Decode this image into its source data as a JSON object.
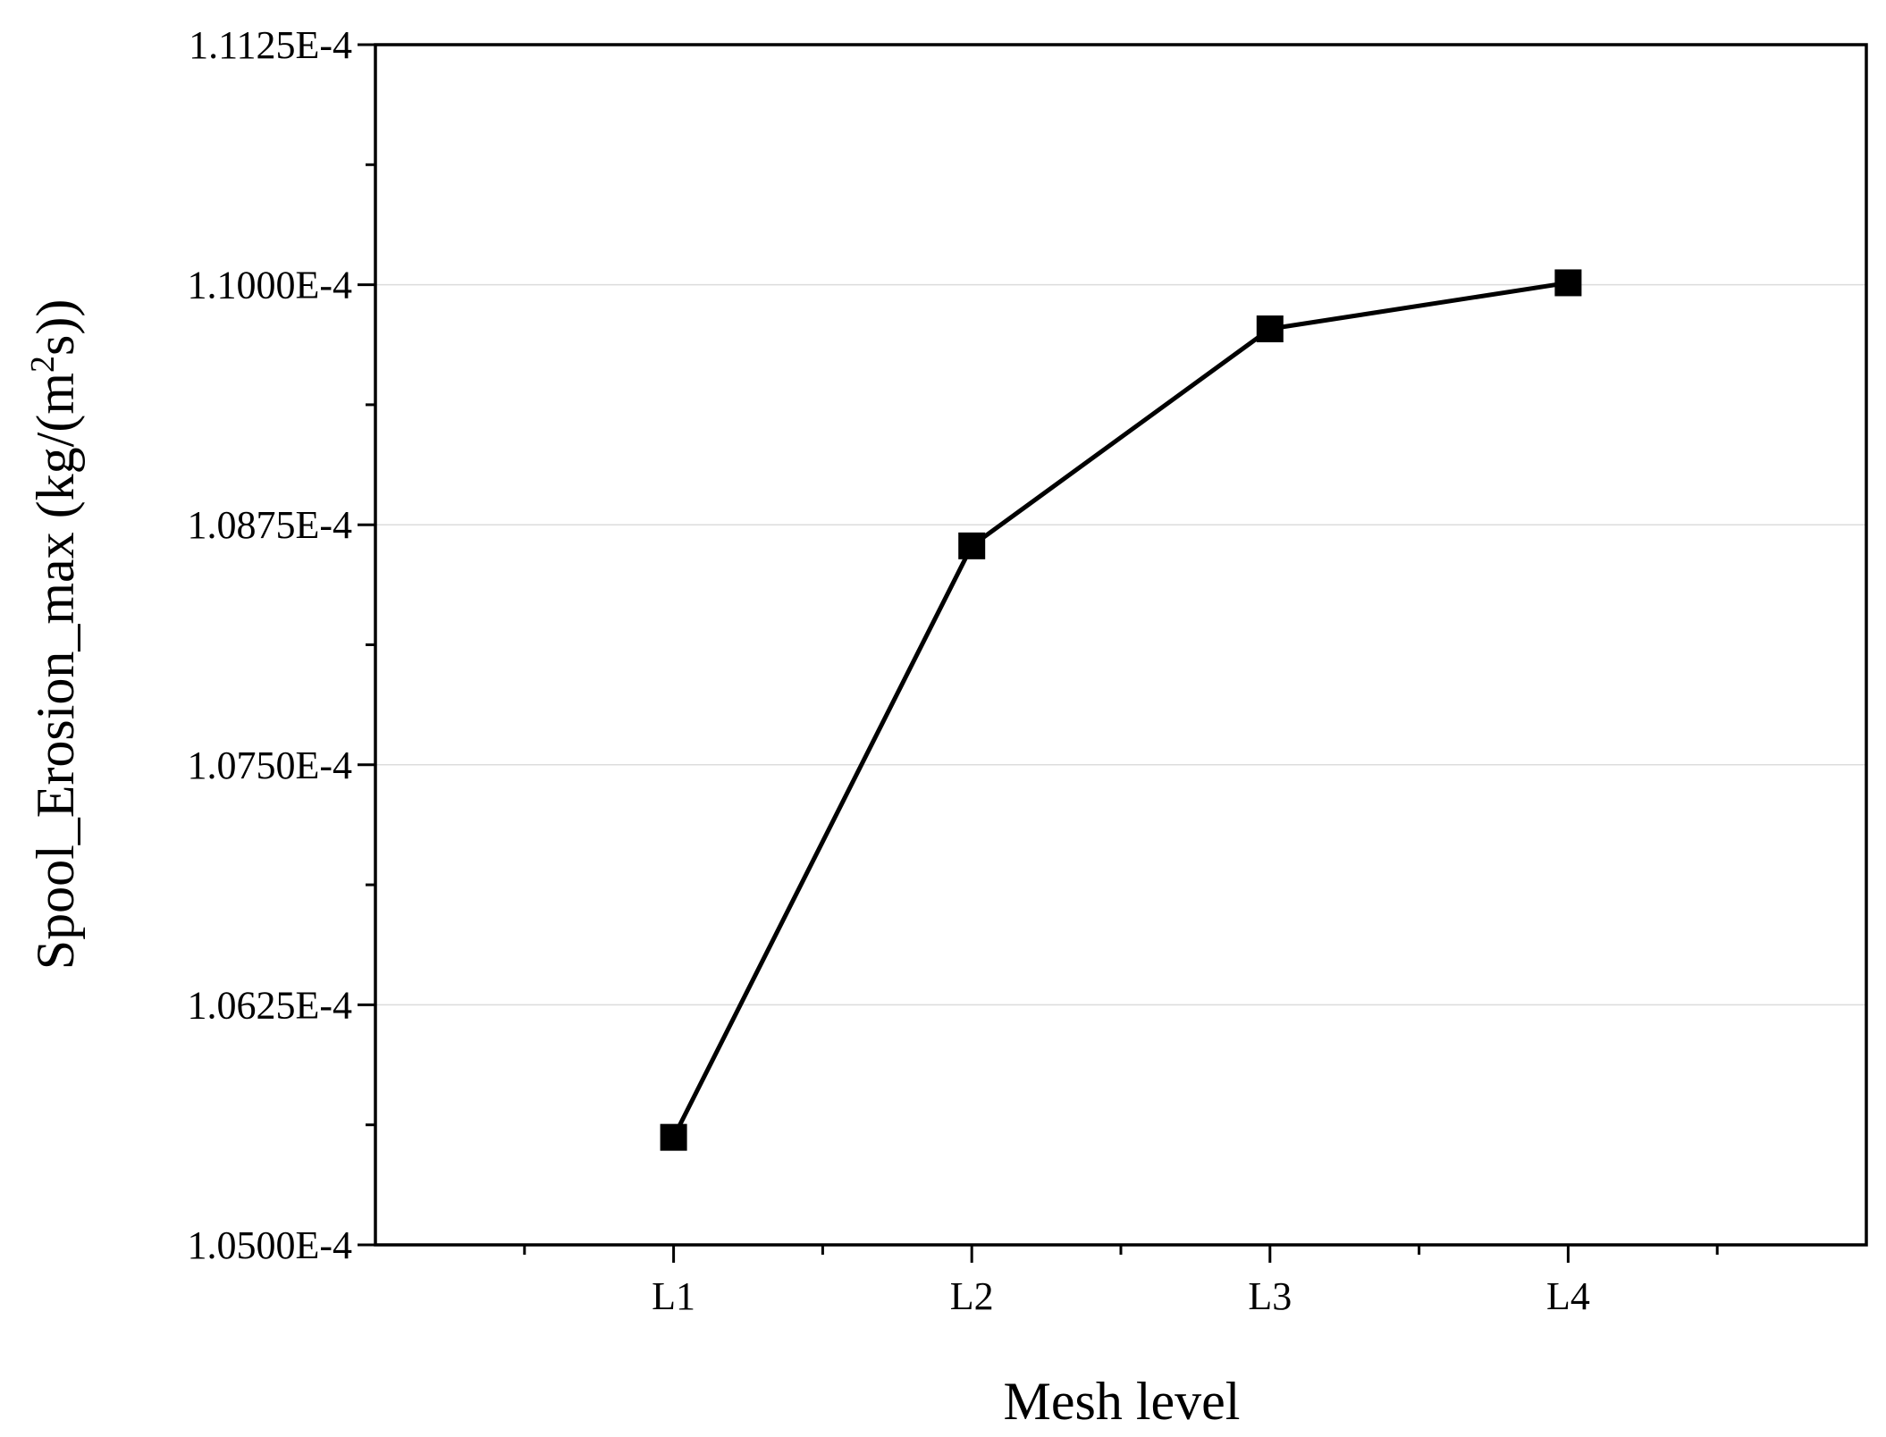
{
  "chart_data": {
    "type": "line",
    "xlabel": "Mesh level",
    "ylabel": "Spool_Erosion_max  (kg/(m",
    "ylabel_sup": "2",
    "ylabel_end": "s))",
    "categories": [
      "L1",
      "L2",
      "L3",
      "L4"
    ],
    "series": [
      {
        "values": [
          0.00010556,
          0.00010864,
          0.00010977,
          0.00011001
        ]
      }
    ],
    "ylim": [
      0.000105,
      0.00011125
    ],
    "yticks": [
      0.000105,
      0.00010625,
      0.0001075,
      0.00010875,
      0.00011,
      0.00011125
    ],
    "ytick_labels": [
      "1.0500E-4",
      "1.0625E-4",
      "1.0750E-4",
      "1.0875E-4",
      "1.1000E-4",
      "1.1125E-4"
    ],
    "grid": "horizontal",
    "marker": "square",
    "line_color": "#000000",
    "grid_color": "#dcdcdc"
  }
}
